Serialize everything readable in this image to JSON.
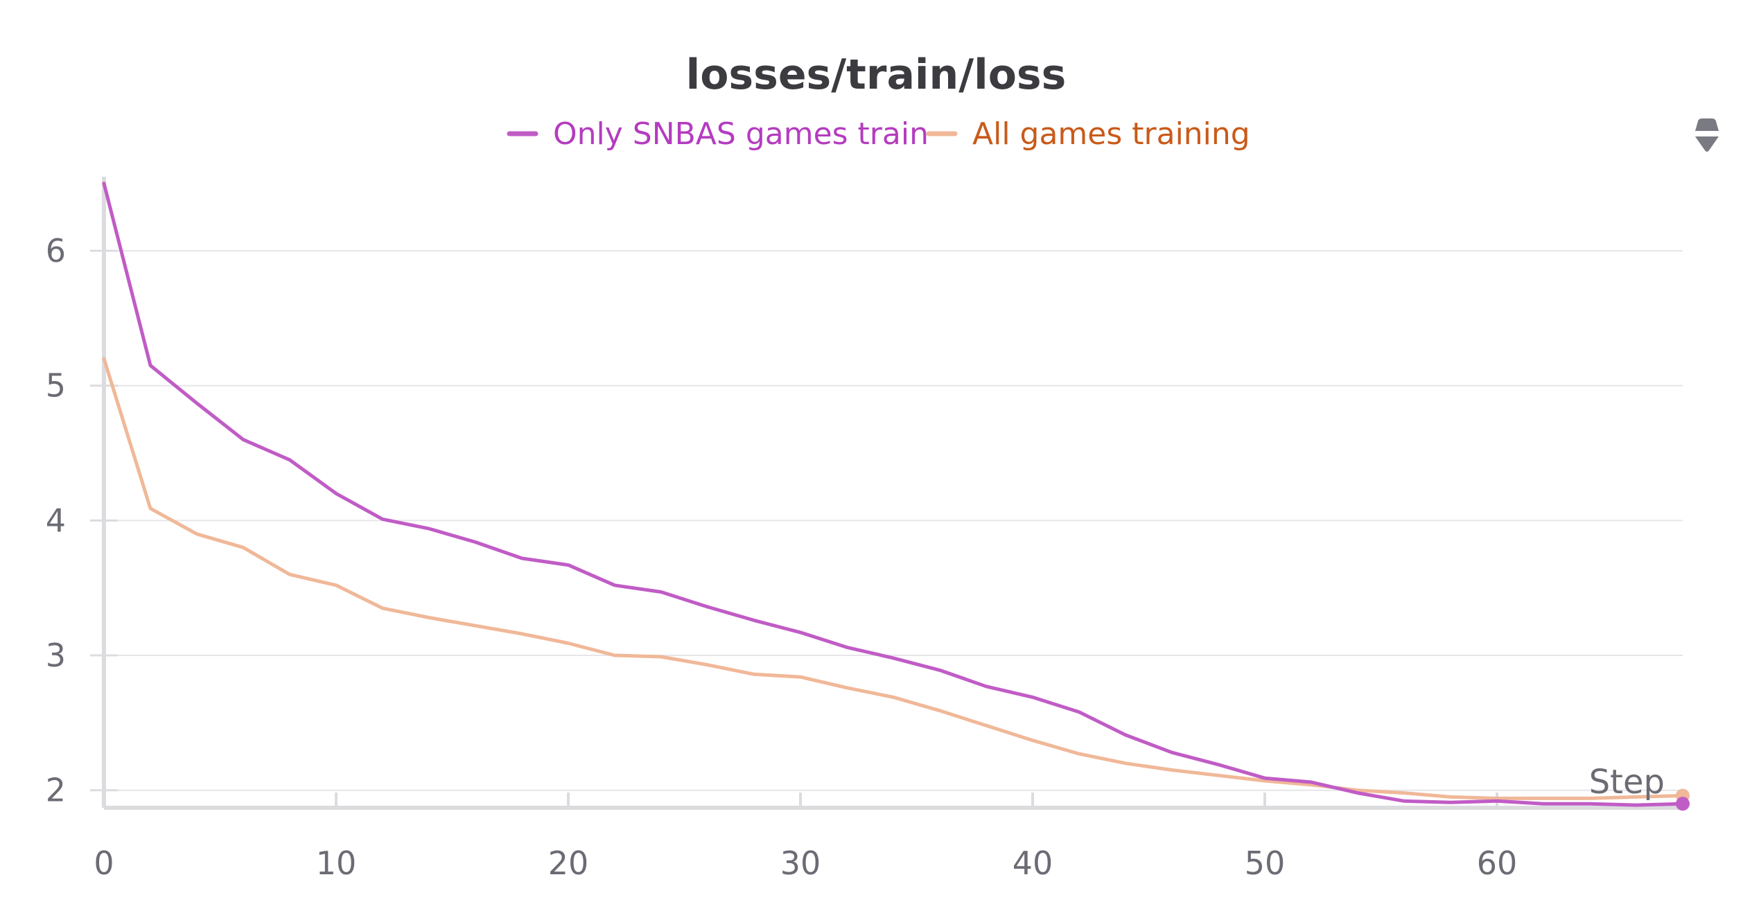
{
  "chart_data": {
    "type": "line",
    "title": "losses/train/loss",
    "xlabel": "Step",
    "ylabel": "",
    "xlim": [
      0,
      68
    ],
    "ylim": [
      1.87,
      6.55
    ],
    "xticks": [
      0,
      10,
      20,
      30,
      40,
      50,
      60
    ],
    "yticks": [
      2,
      3,
      4,
      5,
      6
    ],
    "grid": "horizontal",
    "legend_position": "top-center",
    "series": [
      {
        "name": "Only SNBAS games train",
        "color": "#c05cc6",
        "legend_text_color": "#b43cbf",
        "x": [
          0,
          2,
          4,
          6,
          8,
          10,
          12,
          14,
          16,
          18,
          20,
          22,
          24,
          26,
          28,
          30,
          32,
          34,
          36,
          38,
          40,
          42,
          44,
          46,
          48,
          50,
          52,
          54,
          56,
          58,
          60,
          62,
          64,
          66,
          68
        ],
        "values": [
          6.5,
          5.15,
          4.87,
          4.6,
          4.45,
          4.2,
          4.01,
          3.94,
          3.84,
          3.72,
          3.67,
          3.52,
          3.47,
          3.36,
          3.26,
          3.17,
          3.06,
          2.98,
          2.89,
          2.77,
          2.69,
          2.58,
          2.41,
          2.28,
          2.19,
          2.09,
          2.06,
          1.98,
          1.92,
          1.91,
          1.92,
          1.9,
          1.9,
          1.89,
          1.9
        ]
      },
      {
        "name": "All games training",
        "color": "#f0b898",
        "legend_text_color": "#c95a1a",
        "x": [
          0,
          2,
          4,
          6,
          8,
          10,
          12,
          14,
          16,
          18,
          20,
          22,
          24,
          26,
          28,
          30,
          32,
          34,
          36,
          38,
          40,
          42,
          44,
          46,
          48,
          50,
          52,
          54,
          56,
          58,
          60,
          62,
          64,
          66,
          68
        ],
        "values": [
          5.2,
          4.09,
          3.9,
          3.8,
          3.6,
          3.52,
          3.35,
          3.28,
          3.22,
          3.16,
          3.09,
          3.0,
          2.99,
          2.93,
          2.86,
          2.84,
          2.76,
          2.69,
          2.59,
          2.48,
          2.37,
          2.27,
          2.2,
          2.15,
          2.11,
          2.07,
          2.04,
          2.0,
          1.98,
          1.95,
          1.94,
          1.94,
          1.94,
          1.95,
          1.96
        ]
      }
    ]
  },
  "ui": {
    "menu_icon": "sort-handle-icon"
  }
}
